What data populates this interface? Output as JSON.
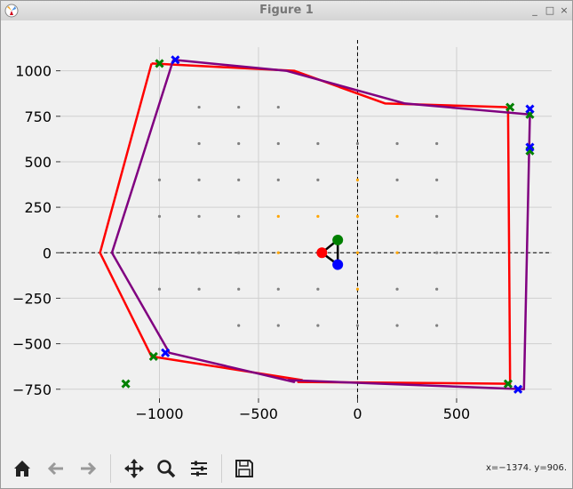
{
  "window": {
    "title": "Figure 1"
  },
  "window_controls": {
    "minimize": "_",
    "maximize": "□",
    "close": "×"
  },
  "toolbar": {
    "buttons": [
      "home-icon",
      "back-arrow-icon",
      "forward-arrow-icon",
      "pan-icon",
      "zoom-icon",
      "configure-subplots-icon",
      "save-icon"
    ],
    "coords_readout": "x=−1374. y=906."
  },
  "chart_data": {
    "type": "line",
    "title": "",
    "xlabel": "",
    "ylabel": "",
    "xlim": [
      -1000,
      1000
    ],
    "ylim": [
      -750,
      1000
    ],
    "xlim_view": [
      -1500,
      980
    ],
    "ylim_view": [
      -800,
      1130
    ],
    "x_ticks": [
      -1000,
      -500,
      0,
      500
    ],
    "x_tick_labels": [
      "−1000",
      "−500",
      "0",
      "500"
    ],
    "y_ticks": [
      -750,
      -500,
      -250,
      0,
      250,
      500,
      750,
      1000
    ],
    "y_tick_labels": [
      "−750",
      "−500",
      "−250",
      "0",
      "250",
      "500",
      "750",
      "1000"
    ],
    "grid": true,
    "reference_lines": {
      "x": 0,
      "y": 0,
      "style": "dashed"
    },
    "colors": {
      "red": "#ff0000",
      "purple": "#800080",
      "green": "#008000",
      "blue": "#0000ff",
      "gray": "#808080",
      "orange": "#ffa500"
    },
    "series": [
      {
        "color": "#ff0000",
        "points": [
          [
            -1040,
            1040
          ],
          [
            -320,
            1000
          ],
          [
            -320,
            1000
          ],
          [
            140,
            820
          ],
          [
            750,
            800
          ],
          [
            760,
            790
          ],
          [
            770,
            -720
          ],
          [
            -300,
            -710
          ],
          [
            -280,
            -700
          ],
          [
            -1040,
            -570
          ],
          [
            -1300,
            0
          ],
          [
            -1040,
            1040
          ]
        ]
      },
      {
        "color": "#800080",
        "points": [
          [
            -930,
            1060
          ],
          [
            -360,
            1000
          ],
          [
            240,
            820
          ],
          [
            870,
            760
          ],
          [
            840,
            -750
          ],
          [
            -350,
            -700
          ],
          [
            -320,
            -710
          ],
          [
            -950,
            -550
          ],
          [
            -1240,
            0
          ],
          [
            -930,
            1060
          ]
        ]
      }
    ],
    "markers_green_x": [
      [
        -1000,
        1040
      ],
      [
        770,
        800
      ],
      [
        870,
        760
      ],
      [
        870,
        560
      ],
      [
        -1030,
        -570
      ],
      [
        760,
        -720
      ],
      [
        -1170,
        -720
      ]
    ],
    "markers_blue_x": [
      [
        -920,
        1060
      ],
      [
        870,
        790
      ],
      [
        870,
        580
      ],
      [
        -970,
        -550
      ],
      [
        810,
        -750
      ]
    ],
    "robot": {
      "red": [
        -180,
        0
      ],
      "green": [
        -100,
        70
      ],
      "blue": [
        -100,
        -65
      ]
    },
    "gray_grid_points": [
      [
        -800,
        800
      ],
      [
        -600,
        800
      ],
      [
        -400,
        800
      ],
      [
        -800,
        600
      ],
      [
        -600,
        600
      ],
      [
        -400,
        600
      ],
      [
        -200,
        600
      ],
      [
        0,
        600
      ],
      [
        200,
        600
      ],
      [
        400,
        600
      ],
      [
        -1000,
        400
      ],
      [
        -800,
        400
      ],
      [
        -600,
        400
      ],
      [
        -400,
        400
      ],
      [
        -200,
        400
      ],
      [
        200,
        400
      ],
      [
        400,
        400
      ],
      [
        -1000,
        200
      ],
      [
        -800,
        200
      ],
      [
        -600,
        200
      ],
      [
        400,
        200
      ],
      [
        -1000,
        0
      ],
      [
        -800,
        0
      ],
      [
        -600,
        0
      ],
      [
        400,
        0
      ],
      [
        -1000,
        -200
      ],
      [
        -800,
        -200
      ],
      [
        -600,
        -200
      ],
      [
        -400,
        -200
      ],
      [
        -200,
        -200
      ],
      [
        200,
        -200
      ],
      [
        400,
        -200
      ],
      [
        -600,
        -400
      ],
      [
        -400,
        -400
      ],
      [
        -200,
        -400
      ],
      [
        0,
        -400
      ],
      [
        200,
        -400
      ],
      [
        400,
        -400
      ]
    ],
    "orange_points": [
      [
        0,
        400
      ],
      [
        -400,
        200
      ],
      [
        -200,
        200
      ],
      [
        0,
        200
      ],
      [
        200,
        200
      ],
      [
        -400,
        0
      ],
      [
        0,
        0
      ],
      [
        200,
        0
      ],
      [
        0,
        -200
      ]
    ]
  }
}
